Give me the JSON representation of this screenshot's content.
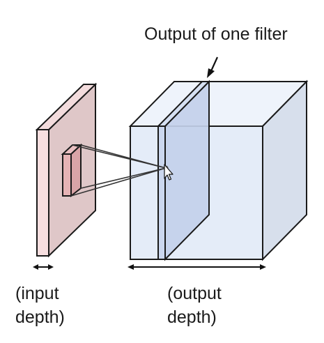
{
  "labels": {
    "output_of_one_filter": "Output of one filter",
    "input_depth_line1": "(input",
    "input_depth_line2": "depth)",
    "output_depth_line1": "(output",
    "output_depth_line2": "depth)"
  },
  "colors": {
    "input_volume_fill": "#e7d0d0",
    "input_front_fill": "#f7dfe0",
    "receptive_field_fill": "#e6b3b5",
    "output_volume_fill": "#e4ecf8",
    "output_slice_fill": "#c3d0ea",
    "stroke": "#1a1a1a"
  }
}
